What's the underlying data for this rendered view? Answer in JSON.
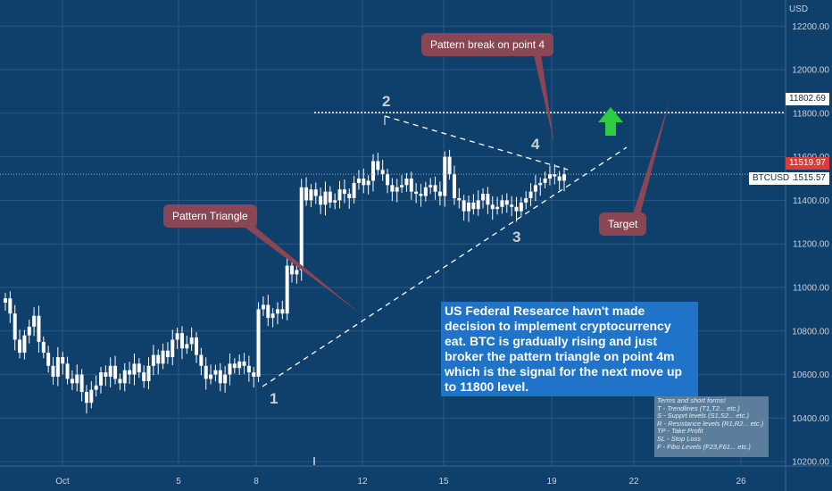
{
  "chart_data": {
    "type": "candlestick",
    "symbol": "BTCUSD",
    "currency": "USD",
    "y_axis": {
      "ticks": [
        10200,
        10400,
        10600,
        10800,
        11000,
        11200,
        11400,
        11600,
        11800,
        12000,
        12200
      ],
      "ylim": [
        10180,
        12320
      ]
    },
    "x_axis": {
      "ticks": [
        "Oct",
        "5",
        "8",
        "12",
        "15",
        "19",
        "22",
        "26"
      ]
    },
    "grid": true,
    "price_labels": {
      "target_level": "11802.69",
      "last_price": "11519.97",
      "btcusd_price": "11515.57",
      "btcusd_symbol": "BTCUSD"
    },
    "waves": [
      "1",
      "2",
      "3",
      "4"
    ],
    "series": [
      {
        "values": [
          10950,
          10880,
          10760,
          10700,
          10780,
          10820,
          10870,
          10750,
          10700,
          10640,
          10590,
          10680,
          10650,
          10580,
          10560,
          10600,
          10520,
          10470,
          10530,
          10550,
          10610,
          10590,
          10640,
          10580,
          10560,
          10620,
          10600,
          10650,
          10610,
          10570,
          10640,
          10690,
          10650,
          10710,
          10680,
          10760,
          10790,
          10720,
          10740,
          10770,
          10690,
          10640,
          10580,
          10600,
          10620,
          10560,
          10600,
          10650,
          10630,
          10660,
          10640,
          10610,
          10590,
          10900,
          10920,
          10860,
          10880,
          10900,
          10880,
          11100,
          11060,
          11080,
          11460,
          11400,
          11450,
          11420,
          11380,
          11440,
          11390,
          11400,
          11450,
          11430,
          11410,
          11480,
          11500,
          11470,
          11490,
          11580,
          11540,
          11520,
          11470,
          11440,
          11460,
          11470,
          11500,
          11440,
          11430,
          11420,
          11460,
          11470,
          11440,
          11420,
          11600,
          11520,
          11410,
          11400,
          11350,
          11390,
          11360,
          11400,
          11430,
          11380,
          11360,
          11370,
          11400,
          11380,
          11370,
          11350,
          11390,
          11410,
          11440,
          11470,
          11480,
          11500,
          11520,
          11510,
          11490,
          11520
        ]
      }
    ]
  },
  "annotations": {
    "pattern_triangle": "Pattern Triangle",
    "pattern_break": "Pattern break on point 4",
    "target": "Target",
    "news": "US Federal Researce havn't made decision to implement cryptocurrency eat. BTC is gradually rising and just broker the pattern triangle on point 4m which is the signal for the next move up to 11800 level.",
    "terms_title": "Terms and short forms!",
    "terms": [
      "T - Trendlines (T1,T2... etc.)",
      "S - Supprt levels (S1,S2... etc.)",
      "R - Resistance levels (R1,R2... etc.)",
      "TP - Take Profit",
      "SL - Stop Loss",
      "F - Fibo Levels  (F23,F61... etc.)"
    ]
  },
  "colors": {
    "background": "#0f3f6b",
    "grid": "#2c5880",
    "candle": "#ffffff",
    "annotation_box": "#8a4652",
    "news_box": "#1f73c8",
    "up_arrow": "#2ecc40",
    "last_price": "#e03a3a"
  }
}
